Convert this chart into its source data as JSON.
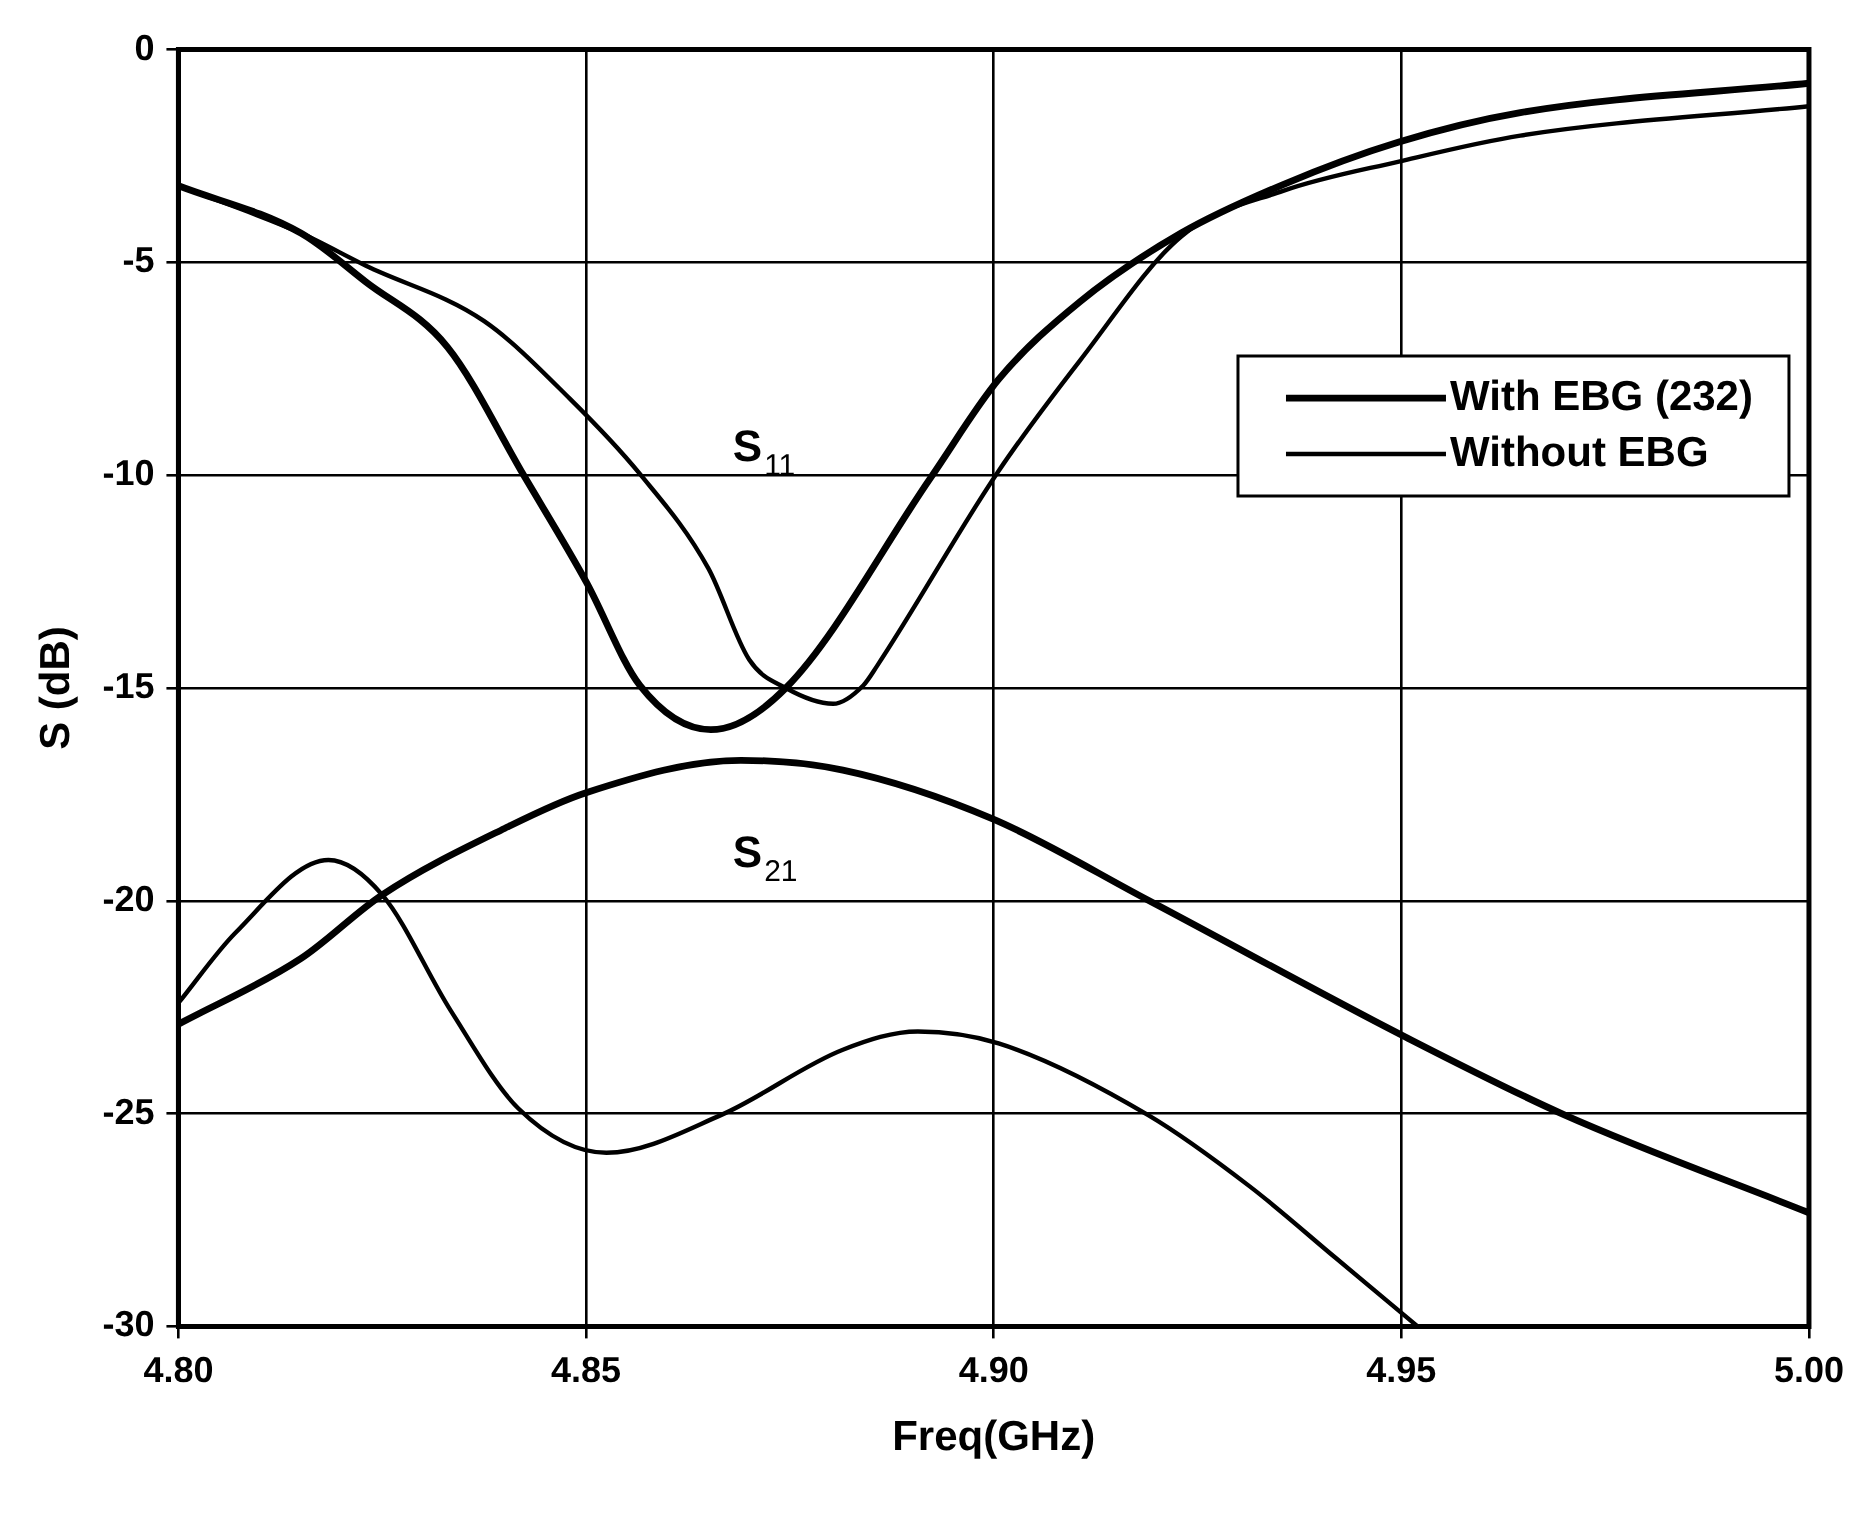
{
  "chart_data": {
    "type": "line",
    "xlabel": "Freq(GHz)",
    "ylabel": "S (dB)",
    "xlim": [
      4.8,
      5.0
    ],
    "xticks": [
      {
        "value": 4.8,
        "label": "4.80"
      },
      {
        "value": 4.85,
        "label": "4.85"
      },
      {
        "value": 4.9,
        "label": "4.90"
      },
      {
        "value": 4.95,
        "label": "4.95"
      },
      {
        "value": 5.0,
        "label": "5.00"
      }
    ],
    "ylim": [
      -30,
      0
    ],
    "yticks": [
      -30,
      -25,
      -20,
      -15,
      -10,
      -5,
      0
    ],
    "grid": true,
    "legend": "right",
    "marker": "none",
    "line_style": "solid",
    "series": [
      {
        "name": "With EBG (232)",
        "color": "#000000",
        "x": [
          4.8,
          4.815,
          4.823,
          4.833,
          4.8425,
          4.85,
          4.8566,
          4.8653,
          4.8745,
          4.8923,
          4.9006,
          4.9106,
          4.923,
          4.9355,
          4.9497,
          4.9646,
          5.0
        ],
        "values": [
          -3.2,
          -4.31,
          -5.46,
          -6.99,
          -10.05,
          -12.5,
          -14.94,
          -15.98,
          -15.0,
          -10.05,
          -7.75,
          -5.92,
          -4.31,
          -3.17,
          -2.17,
          -1.48,
          -0.79
        ]
      },
      {
        "name": "Without EBG",
        "color": "#000000",
        "x": [
          4.8,
          4.815,
          4.823,
          4.8375,
          4.848,
          4.8566,
          4.865,
          4.87,
          4.8745,
          4.8803,
          4.884,
          4.8857,
          4.9006,
          4.9106,
          4.923,
          4.9355,
          4.9497,
          4.9646,
          5.0
        ],
        "values": [
          -3.2,
          -4.31,
          -5.08,
          -6.38,
          -8.2,
          -9.97,
          -12.19,
          -14.33,
          -15.0,
          -15.37,
          -14.94,
          -14.48,
          -9.9,
          -7.3,
          -4.39,
          -3.32,
          -2.63,
          -2.02,
          -1.33
        ]
      },
      {
        "color": "#000000",
        "x": [
          4.8,
          4.815,
          4.825,
          4.84,
          4.85,
          4.869,
          4.8815,
          4.8998,
          4.9189,
          4.9505,
          4.97,
          5.0
        ],
        "values": [
          -22.9,
          -21.36,
          -19.86,
          -18.3,
          -17.46,
          -16.7,
          -16.93,
          -18.07,
          -19.98,
          -23.2,
          -25.03,
          -27.33
        ]
      },
      {
        "color": "#000000",
        "x": [
          4.8,
          4.807,
          4.8184,
          4.825,
          4.8334,
          4.8417,
          4.8525,
          4.8666,
          4.8815,
          4.8907,
          4.9006,
          4.9189,
          4.9314,
          4.942,
          4.952
        ],
        "values": [
          -22.4,
          -20.75,
          -19.04,
          -19.86,
          -22.58,
          -24.88,
          -25.92,
          -25.03,
          -23.5,
          -23.07,
          -23.35,
          -25.03,
          -26.71,
          -28.4,
          -30
        ]
      }
    ],
    "annotations": [
      "S$_{11}$",
      "S$_{21}$"
    ]
  }
}
